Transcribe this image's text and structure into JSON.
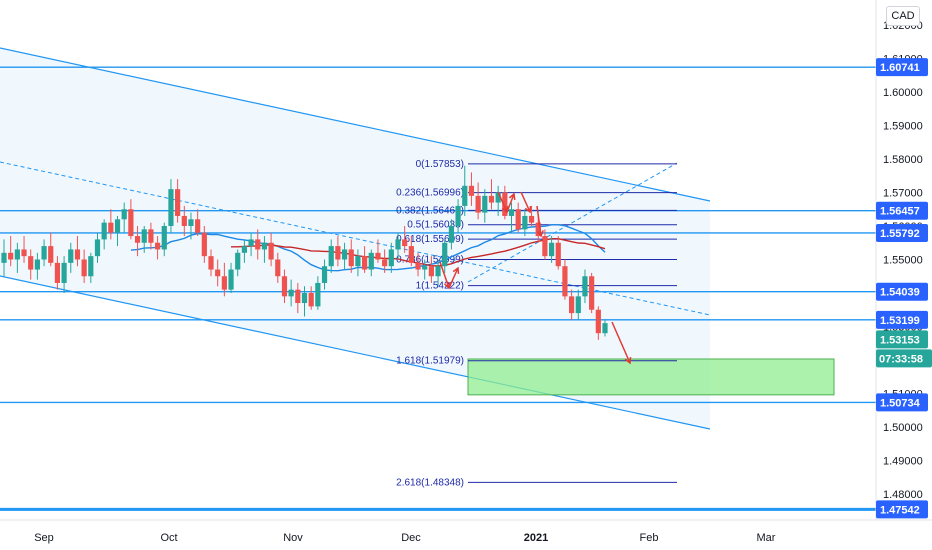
{
  "currency": "CAD",
  "colors": {
    "up": "#26a69a",
    "down": "#ef5350",
    "level_line": "#2196f3",
    "fib_line": "#1e2aa8",
    "channel_fill": "#e3f2fd",
    "target_zone": "#90ee90",
    "ma_red": "#c62828",
    "ma_blue": "#1e88e5",
    "arrow": "#e53935",
    "tag_dark": "#2962ff",
    "tag_teal": "#26a69a"
  },
  "chart_data": {
    "type": "candlestick",
    "x_axis_labels": [
      "Sep",
      "Oct",
      "Nov",
      "Dec",
      "2021",
      "Feb",
      "Mar"
    ],
    "y_axis_labels": [
      "1.62000",
      "1.61000",
      "1.60000",
      "1.59000",
      "1.58000",
      "1.57000",
      "1.56000",
      "1.55000",
      "1.54000",
      "1.53000",
      "1.52000",
      "1.51000",
      "1.50000",
      "1.49000",
      "1.48000"
    ],
    "ylim": [
      1.468,
      1.63
    ],
    "horizontal_levels": [
      {
        "label": "1.60741",
        "value": 1.60741
      },
      {
        "label": "1.56457",
        "value": 1.56457
      },
      {
        "label": "1.55792",
        "value": 1.55792
      },
      {
        "label": "1.54039",
        "value": 1.54039
      },
      {
        "label": "1.53199",
        "value": 1.53199
      },
      {
        "label": "1.50734",
        "value": 1.50734
      },
      {
        "label": "1.47542",
        "value": 1.47542
      }
    ],
    "current_price": {
      "label": "1.53153",
      "value": 1.53153
    },
    "countdown": "07:33:58",
    "fibonacci": [
      {
        "label": "0(1.57853)",
        "value": 1.57853
      },
      {
        "label": "0.236(1.56996)",
        "value": 1.56996
      },
      {
        "label": "0.382(1.56466)",
        "value": 1.56466
      },
      {
        "label": "0.5(1.56038)",
        "value": 1.56038
      },
      {
        "label": "0.618(1.55609)",
        "value": 1.55609
      },
      {
        "label": "0.786(1.54999)",
        "value": 1.54999
      },
      {
        "label": "1(1.54222)",
        "value": 1.54222
      },
      {
        "label": "1.618(1.51979)",
        "value": 1.51979
      },
      {
        "label": "2.618(1.48348)",
        "value": 1.48348
      }
    ],
    "target_zone": {
      "from": 1.5096,
      "to": 1.5203
    },
    "candles": [
      [
        1.549,
        1.556,
        1.545,
        1.552
      ],
      [
        1.552,
        1.557,
        1.548,
        1.55
      ],
      [
        1.55,
        1.555,
        1.546,
        1.553
      ],
      [
        1.553,
        1.557,
        1.549,
        1.551
      ],
      [
        1.551,
        1.553,
        1.544,
        1.547
      ],
      [
        1.547,
        1.552,
        1.544,
        1.55
      ],
      [
        1.55,
        1.556,
        1.548,
        1.554
      ],
      [
        1.554,
        1.558,
        1.548,
        1.549
      ],
      [
        1.549,
        1.551,
        1.541,
        1.543
      ],
      [
        1.543,
        1.551,
        1.54,
        1.549
      ],
      [
        1.549,
        1.555,
        1.546,
        1.553
      ],
      [
        1.553,
        1.557,
        1.548,
        1.55
      ],
      [
        1.55,
        1.553,
        1.543,
        1.545
      ],
      [
        1.545,
        1.552,
        1.543,
        1.551
      ],
      [
        1.551,
        1.558,
        1.549,
        1.556
      ],
      [
        1.556,
        1.562,
        1.553,
        1.561
      ],
      [
        1.561,
        1.565,
        1.556,
        1.558
      ],
      [
        1.558,
        1.563,
        1.554,
        1.562
      ],
      [
        1.562,
        1.567,
        1.558,
        1.565
      ],
      [
        1.565,
        1.568,
        1.556,
        1.557
      ],
      [
        1.557,
        1.56,
        1.551,
        1.555
      ],
      [
        1.555,
        1.56,
        1.552,
        1.559
      ],
      [
        1.559,
        1.561,
        1.553,
        1.555
      ],
      [
        1.555,
        1.557,
        1.55,
        1.553
      ],
      [
        1.553,
        1.561,
        1.551,
        1.56
      ],
      [
        1.56,
        1.574,
        1.558,
        1.571
      ],
      [
        1.571,
        1.574,
        1.561,
        1.563
      ],
      [
        1.563,
        1.566,
        1.557,
        1.56
      ],
      [
        1.56,
        1.564,
        1.556,
        1.562
      ],
      [
        1.562,
        1.565,
        1.557,
        1.558
      ],
      [
        1.558,
        1.56,
        1.549,
        1.551
      ],
      [
        1.551,
        1.553,
        1.545,
        1.547
      ],
      [
        1.547,
        1.55,
        1.542,
        1.545
      ],
      [
        1.545,
        1.549,
        1.539,
        1.541
      ],
      [
        1.541,
        1.549,
        1.54,
        1.547
      ],
      [
        1.547,
        1.553,
        1.545,
        1.552
      ],
      [
        1.552,
        1.556,
        1.549,
        1.554
      ],
      [
        1.554,
        1.558,
        1.551,
        1.556
      ],
      [
        1.556,
        1.559,
        1.55,
        1.553
      ],
      [
        1.553,
        1.557,
        1.549,
        1.555
      ],
      [
        1.555,
        1.558,
        1.548,
        1.55
      ],
      [
        1.55,
        1.552,
        1.543,
        1.545
      ],
      [
        1.545,
        1.547,
        1.537,
        1.539
      ],
      [
        1.539,
        1.544,
        1.536,
        1.541
      ],
      [
        1.541,
        1.543,
        1.534,
        1.537
      ],
      [
        1.537,
        1.542,
        1.533,
        1.54
      ],
      [
        1.54,
        1.542,
        1.535,
        1.536
      ],
      [
        1.536,
        1.545,
        1.535,
        1.543
      ],
      [
        1.543,
        1.55,
        1.541,
        1.548
      ],
      [
        1.548,
        1.556,
        1.546,
        1.554
      ],
      [
        1.554,
        1.557,
        1.548,
        1.55
      ],
      [
        1.55,
        1.555,
        1.547,
        1.553
      ],
      [
        1.553,
        1.556,
        1.546,
        1.548
      ],
      [
        1.548,
        1.553,
        1.545,
        1.551
      ],
      [
        1.551,
        1.554,
        1.546,
        1.547
      ],
      [
        1.547,
        1.553,
        1.545,
        1.552
      ],
      [
        1.552,
        1.556,
        1.549,
        1.55
      ],
      [
        1.55,
        1.553,
        1.546,
        1.548
      ],
      [
        1.548,
        1.555,
        1.546,
        1.553
      ],
      [
        1.553,
        1.558,
        1.55,
        1.556
      ],
      [
        1.556,
        1.56,
        1.552,
        1.554
      ],
      [
        1.554,
        1.557,
        1.548,
        1.549
      ],
      [
        1.549,
        1.552,
        1.545,
        1.547
      ],
      [
        1.547,
        1.55,
        1.544,
        1.548
      ],
      [
        1.548,
        1.551,
        1.543,
        1.545
      ],
      [
        1.545,
        1.55,
        1.542,
        1.548
      ],
      [
        1.548,
        1.556,
        1.546,
        1.555
      ],
      [
        1.555,
        1.562,
        1.553,
        1.56
      ],
      [
        1.56,
        1.568,
        1.558,
        1.566
      ],
      [
        1.566,
        1.578,
        1.563,
        1.572
      ],
      [
        1.572,
        1.576,
        1.566,
        1.569
      ],
      [
        1.569,
        1.573,
        1.562,
        1.564
      ],
      [
        1.564,
        1.571,
        1.561,
        1.569
      ],
      [
        1.569,
        1.574,
        1.565,
        1.567
      ],
      [
        1.567,
        1.572,
        1.563,
        1.57
      ],
      [
        1.57,
        1.572,
        1.562,
        1.563
      ],
      [
        1.563,
        1.567,
        1.558,
        1.565
      ],
      [
        1.565,
        1.567,
        1.558,
        1.559
      ],
      [
        1.559,
        1.565,
        1.557,
        1.563
      ],
      [
        1.563,
        1.566,
        1.56,
        1.561
      ],
      [
        1.561,
        1.563,
        1.555,
        1.557
      ],
      [
        1.557,
        1.559,
        1.55,
        1.551
      ],
      [
        1.551,
        1.557,
        1.549,
        1.555
      ],
      [
        1.555,
        1.557,
        1.547,
        1.548
      ],
      [
        1.548,
        1.55,
        1.538,
        1.539
      ],
      [
        1.539,
        1.541,
        1.532,
        1.534
      ],
      [
        1.534,
        1.541,
        1.532,
        1.539
      ],
      [
        1.539,
        1.547,
        1.537,
        1.545
      ],
      [
        1.545,
        1.546,
        1.534,
        1.535
      ],
      [
        1.535,
        1.536,
        1.526,
        1.528
      ],
      [
        1.528,
        1.532,
        1.527,
        1.531
      ]
    ]
  }
}
